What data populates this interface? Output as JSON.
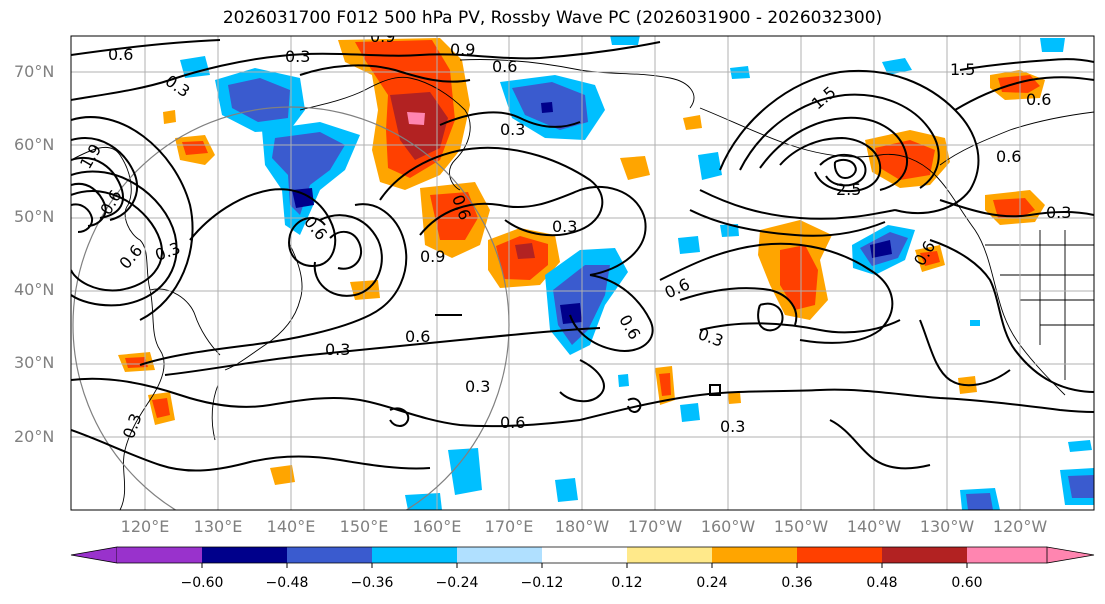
{
  "title": "2026031700 F012 500 hPa PV, Rossby Wave PC (2026031900 - 2026032300)",
  "lat_labels": [
    "70°N",
    "60°N",
    "50°N",
    "40°N",
    "30°N",
    "20°N"
  ],
  "lon_labels": [
    "120°E",
    "130°E",
    "140°E",
    "150°E",
    "160°E",
    "170°E",
    "180°W",
    "170°W",
    "160°W",
    "150°W",
    "140°W",
    "130°W",
    "120°W"
  ],
  "contour_labels": [
    "0.6",
    "0.3",
    "0.9",
    "0.6",
    "0.3",
    "1.5",
    "1.5",
    "0.6",
    "0.3",
    "2.5",
    "0.6",
    "0.3",
    "0.6",
    "0.9",
    "0.3",
    "0.6",
    "0.3",
    "0.6",
    "0.3",
    "0.6",
    "0.6",
    "0.3",
    "0.3",
    "0.6",
    "0.3",
    "0.6",
    "0.3",
    "0.9",
    "1.9",
    "0.6",
    "0.6"
  ],
  "colorbar": {
    "colors": [
      "#9932cc",
      "#00008b",
      "#3a5bcf",
      "#00bfff",
      "#b0e0ff",
      "#ffffff",
      "#ffe98a",
      "#ffa500",
      "#ff4000",
      "#b22222",
      "#ff85b0"
    ],
    "tick_labels": [
      "−0.60",
      "−0.48",
      "−0.36",
      "−0.24",
      "−0.12",
      "0.12",
      "0.24",
      "0.36",
      "0.48",
      "0.60"
    ]
  },
  "anomaly_colors": {
    "neg_strong": "#00008b",
    "neg_mid": "#3a5bcf",
    "neg_weak": "#00bfff",
    "pos_weak": "#ffa500",
    "pos_mid": "#ff4000",
    "pos_strong": "#b22222",
    "pos_extreme": "#ff85b0"
  }
}
